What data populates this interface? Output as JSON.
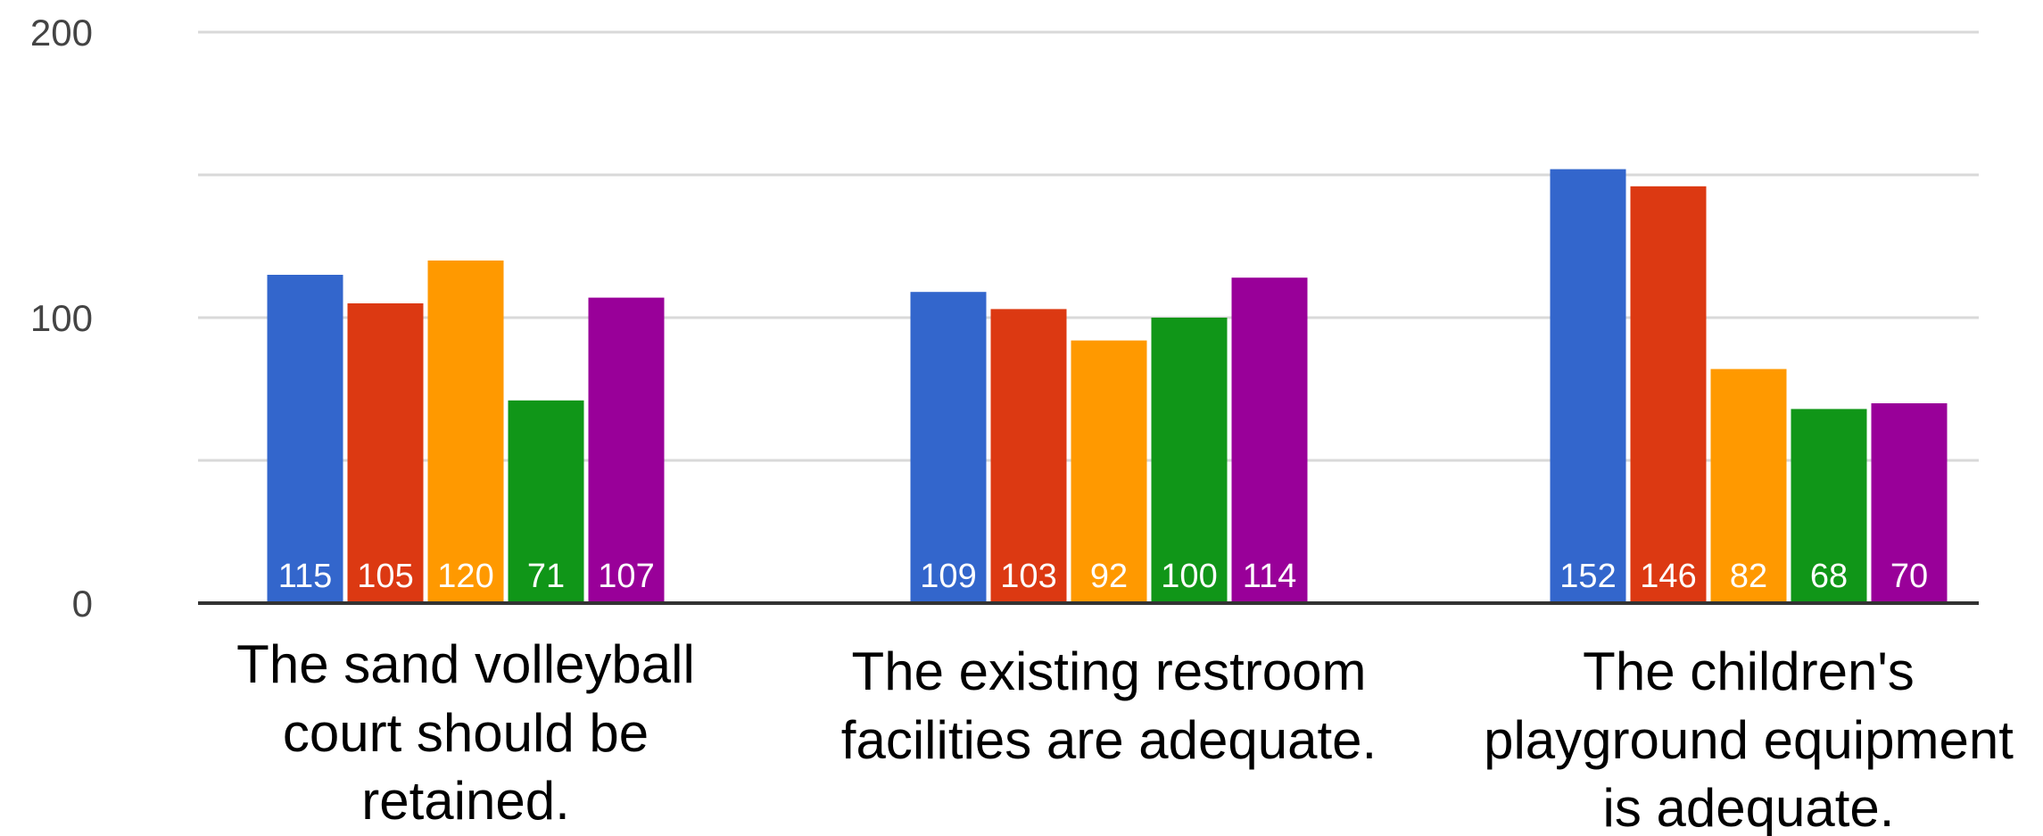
{
  "chart_data": {
    "type": "bar",
    "categories": [
      [
        "The sand volleyball",
        "court should be",
        "retained."
      ],
      [
        "The existing restroom",
        "facilities are adequate."
      ],
      [
        "The children's",
        "playground equipment",
        "is adequate."
      ]
    ],
    "series": [
      {
        "color": "#3366cc",
        "values": [
          115,
          109,
          152
        ]
      },
      {
        "color": "#dc3912",
        "values": [
          105,
          103,
          146
        ]
      },
      {
        "color": "#ff9900",
        "values": [
          120,
          92,
          82
        ]
      },
      {
        "color": "#109618",
        "values": [
          71,
          100,
          68
        ]
      },
      {
        "color": "#990099",
        "values": [
          107,
          114,
          70
        ]
      }
    ],
    "ylim": [
      0,
      200
    ],
    "yticks": [
      0,
      100,
      200
    ],
    "gridlines": [
      50,
      100,
      150,
      200
    ],
    "grid": true,
    "data_labels": true,
    "legend": "none",
    "xlabel": "",
    "ylabel": "",
    "title": ""
  }
}
